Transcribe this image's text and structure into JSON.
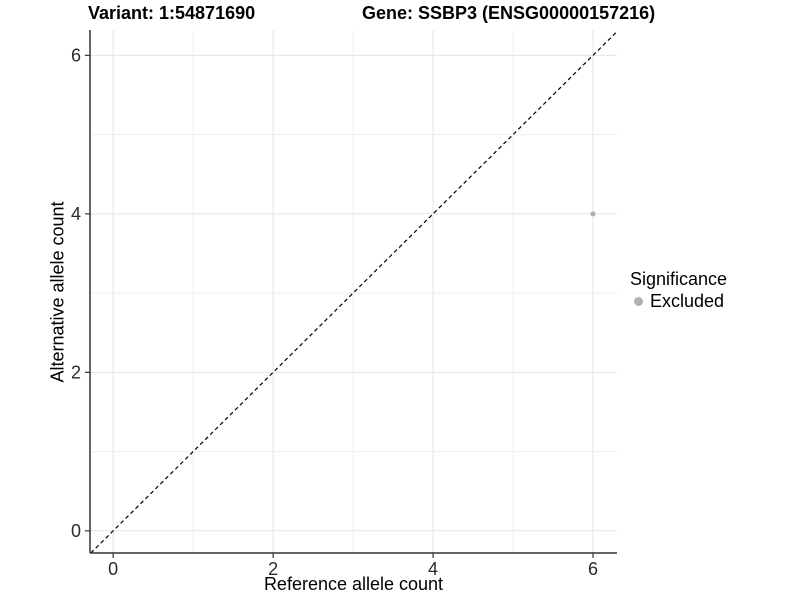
{
  "titles": {
    "variant": "Variant: 1:54871690",
    "gene": "Gene: SSBP3 (ENSG00000157216)"
  },
  "chart_data": {
    "type": "scatter",
    "xlabel": "Reference allele count",
    "ylabel": "Alternative allele count",
    "x_major_ticks": [
      0,
      2,
      4,
      6
    ],
    "y_major_ticks": [
      0,
      2,
      4,
      6
    ],
    "x_minor_ticks": [
      1,
      3,
      5
    ],
    "y_minor_ticks": [
      1,
      3,
      5
    ],
    "xlim": [
      -0.29,
      6.3
    ],
    "ylim": [
      -0.28,
      6.32
    ],
    "grid": true,
    "points": [
      {
        "x": 6,
        "y": 4,
        "series": "Excluded"
      }
    ],
    "identity_line": {
      "style": "dashed",
      "from": [
        -0.28,
        -0.28
      ],
      "to": [
        6.3,
        6.3
      ]
    },
    "legend": {
      "title": "Significance",
      "position": "right",
      "entries": [
        {
          "label": "Excluded",
          "color": "#b0b0b0"
        }
      ]
    }
  },
  "colors": {
    "background": "#ffffff",
    "grid_major": "#e4e4e4",
    "grid_minor": "#efefef",
    "axis_line": "#333333",
    "tick_mark": "#333333",
    "tick_label": "#2b2b2b",
    "identity_line": "#000000",
    "point": "#b0b0b0"
  }
}
